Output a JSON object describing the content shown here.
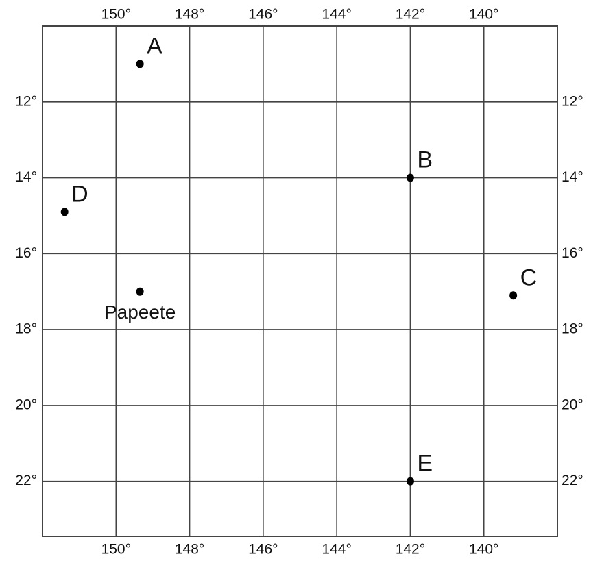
{
  "map": {
    "lon_range": [
      152,
      138
    ],
    "lat_range": [
      10,
      23.45
    ],
    "lon_ticks": [
      {
        "value": 150,
        "label": "150°"
      },
      {
        "value": 148,
        "label": "148°"
      },
      {
        "value": 146,
        "label": "146°"
      },
      {
        "value": 144,
        "label": "144°"
      },
      {
        "value": 142,
        "label": "142°"
      },
      {
        "value": 140,
        "label": "140°"
      }
    ],
    "lat_ticks": [
      {
        "value": 12,
        "label": "12°"
      },
      {
        "value": 14,
        "label": "14°"
      },
      {
        "value": 16,
        "label": "16°"
      },
      {
        "value": 18,
        "label": "18°"
      },
      {
        "value": 20,
        "label": "20°"
      },
      {
        "value": 22,
        "label": "22°"
      }
    ],
    "points": [
      {
        "label": "A",
        "lon": 149.35,
        "lat": 11.0
      },
      {
        "label": "B",
        "lon": 142,
        "lat": 14
      },
      {
        "label": "C",
        "lon": 139.2,
        "lat": 17.1
      },
      {
        "label": "D",
        "lon": 151.4,
        "lat": 14.9
      },
      {
        "label": "Papeete",
        "lon": 149.35,
        "lat": 17
      },
      {
        "label": "E",
        "lon": 142,
        "lat": 22
      }
    ]
  }
}
